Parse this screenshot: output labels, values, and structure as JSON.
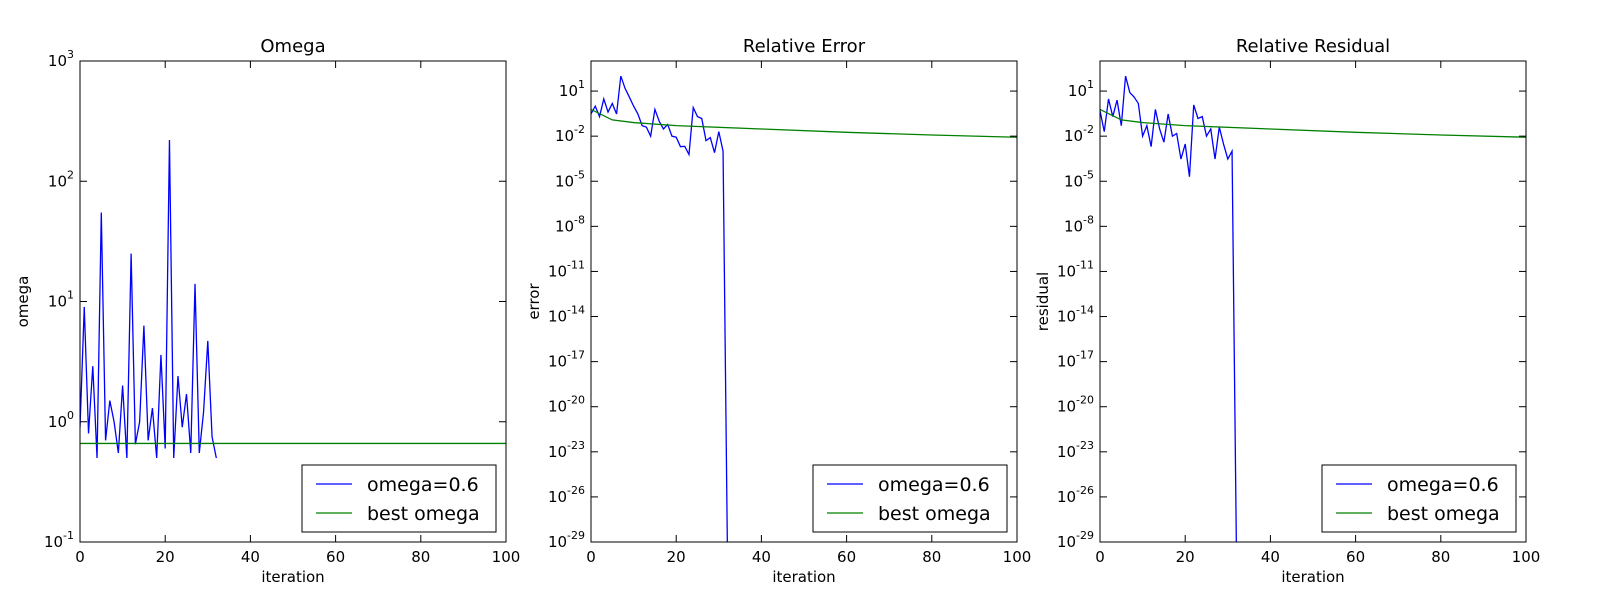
{
  "chart_data": [
    {
      "type": "line",
      "title": "Omega",
      "xlabel": "iteration",
      "ylabel": "omega",
      "yscale": "log",
      "xlim": [
        0,
        100
      ],
      "ylim_exp": [
        -1,
        3
      ],
      "xticks": [
        "0",
        "20",
        "40",
        "60",
        "80",
        "100"
      ],
      "yticks": [
        {
          "base": "10",
          "exp": "-1"
        },
        {
          "base": "10",
          "exp": "0"
        },
        {
          "base": "10",
          "exp": "1"
        },
        {
          "base": "10",
          "exp": "2"
        },
        {
          "base": "10",
          "exp": "3"
        }
      ],
      "legend_position": "lower-right",
      "series": [
        {
          "name": "omega=0.6",
          "color": "#0000ff",
          "x": [
            0,
            1,
            2,
            3,
            4,
            5,
            6,
            7,
            8,
            9,
            10,
            11,
            12,
            13,
            14,
            15,
            16,
            17,
            18,
            19,
            20,
            21,
            22,
            23,
            24,
            25,
            26,
            27,
            28,
            29,
            30,
            31,
            32
          ],
          "y": [
            0.9,
            9.0,
            0.8,
            2.9,
            0.5,
            55,
            0.7,
            1.5,
            1.0,
            0.55,
            2.0,
            0.5,
            25,
            0.65,
            1.0,
            6.3,
            0.7,
            1.3,
            0.5,
            3.6,
            0.6,
            220,
            0.5,
            2.4,
            0.9,
            1.7,
            0.55,
            14,
            0.55,
            1.2,
            4.7,
            0.75,
            0.5
          ]
        },
        {
          "name": "best omega",
          "color": "#008000",
          "x": [
            0,
            100
          ],
          "y": [
            0.66,
            0.66
          ]
        }
      ]
    },
    {
      "type": "line",
      "title": "Relative Error",
      "xlabel": "iteration",
      "ylabel": "error",
      "yscale": "log",
      "xlim": [
        0,
        100
      ],
      "ylim_exp": [
        -29,
        3
      ],
      "xticks": [
        "0",
        "20",
        "40",
        "60",
        "80",
        "100"
      ],
      "yticks": [
        {
          "base": "10",
          "exp": "-29"
        },
        {
          "base": "10",
          "exp": "-26"
        },
        {
          "base": "10",
          "exp": "-23"
        },
        {
          "base": "10",
          "exp": "-20"
        },
        {
          "base": "10",
          "exp": "-17"
        },
        {
          "base": "10",
          "exp": "-14"
        },
        {
          "base": "10",
          "exp": "-11"
        },
        {
          "base": "10",
          "exp": "-8"
        },
        {
          "base": "10",
          "exp": "-5"
        },
        {
          "base": "10",
          "exp": "-2"
        },
        {
          "base": "10",
          "exp": "1"
        }
      ],
      "legend_position": "lower-right",
      "series": [
        {
          "name": "omega=0.6",
          "color": "#0000ff",
          "x": [
            0,
            1,
            2,
            3,
            4,
            5,
            6,
            7,
            8,
            9,
            10,
            11,
            12,
            13,
            14,
            15,
            16,
            17,
            18,
            19,
            20,
            21,
            22,
            23,
            24,
            25,
            26,
            27,
            28,
            29,
            30,
            31,
            32
          ],
          "y": [
            0.3,
            1.0,
            0.2,
            3.0,
            0.4,
            1.5,
            0.3,
            100,
            15,
            4,
            1,
            0.3,
            0.05,
            0.04,
            0.01,
            0.6,
            0.1,
            0.03,
            0.06,
            0.01,
            0.0085,
            0.002,
            0.0021,
            0.0006,
            0.8,
            0.2,
            0.15,
            0.005,
            0.008,
            0.0008,
            0.02,
            0.001,
            1e-29
          ]
        },
        {
          "name": "best omega",
          "color": "#008000",
          "x": [
            0,
            5,
            10,
            20,
            40,
            60,
            80,
            100
          ],
          "y": [
            0.6,
            0.12,
            0.08,
            0.05,
            0.03,
            0.018,
            0.012,
            0.0085
          ]
        }
      ]
    },
    {
      "type": "line",
      "title": "Relative Residual",
      "xlabel": "iteration",
      "ylabel": "residual",
      "yscale": "log",
      "xlim": [
        0,
        100
      ],
      "ylim_exp": [
        -29,
        3
      ],
      "xticks": [
        "0",
        "20",
        "40",
        "60",
        "80",
        "100"
      ],
      "yticks": [
        {
          "base": "10",
          "exp": "-29"
        },
        {
          "base": "10",
          "exp": "-26"
        },
        {
          "base": "10",
          "exp": "-23"
        },
        {
          "base": "10",
          "exp": "-20"
        },
        {
          "base": "10",
          "exp": "-17"
        },
        {
          "base": "10",
          "exp": "-14"
        },
        {
          "base": "10",
          "exp": "-11"
        },
        {
          "base": "10",
          "exp": "-8"
        },
        {
          "base": "10",
          "exp": "-5"
        },
        {
          "base": "10",
          "exp": "-2"
        },
        {
          "base": "10",
          "exp": "1"
        }
      ],
      "legend_position": "lower-right",
      "series": [
        {
          "name": "omega=0.6",
          "color": "#0000ff",
          "x": [
            0,
            1,
            2,
            3,
            4,
            5,
            6,
            7,
            8,
            9,
            10,
            11,
            12,
            13,
            14,
            15,
            16,
            17,
            18,
            19,
            20,
            21,
            22,
            23,
            24,
            25,
            26,
            27,
            28,
            29,
            30,
            31,
            32
          ],
          "y": [
            0.5,
            0.02,
            3.0,
            0.2,
            2.5,
            0.05,
            100,
            8,
            4,
            1.5,
            0.01,
            0.05,
            0.002,
            0.6,
            0.03,
            0.004,
            0.3,
            0.01,
            0.015,
            0.0003,
            0.003,
            2e-05,
            1.2,
            0.15,
            0.2,
            0.01,
            0.03,
            0.0003,
            0.04,
            0.003,
            0.0003,
            0.001,
            1e-29
          ]
        },
        {
          "name": "best omega",
          "color": "#008000",
          "x": [
            0,
            5,
            10,
            20,
            40,
            60,
            80,
            100
          ],
          "y": [
            0.6,
            0.12,
            0.08,
            0.05,
            0.03,
            0.018,
            0.012,
            0.0085
          ]
        }
      ]
    }
  ]
}
